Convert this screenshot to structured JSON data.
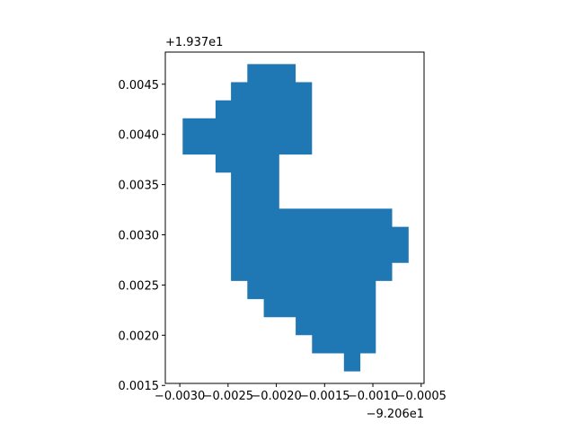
{
  "chart_data": {
    "type": "area",
    "title": "",
    "xlabel": "",
    "ylabel": "",
    "x_offset_label": "−9.206e1",
    "y_offset_label": "+1.937e1",
    "xlim": [
      -0.00315,
      -0.00047
    ],
    "ylim": [
      0.00152,
      0.00482
    ],
    "x_ticks": [
      {
        "value": -0.003,
        "label": "−0.0030"
      },
      {
        "value": -0.0025,
        "label": "−0.0025"
      },
      {
        "value": -0.002,
        "label": "−0.0020"
      },
      {
        "value": -0.0015,
        "label": "−0.0015"
      },
      {
        "value": -0.001,
        "label": "−0.0010"
      },
      {
        "value": -0.0005,
        "label": "−0.0005"
      }
    ],
    "y_ticks": [
      {
        "value": 0.0015,
        "label": "0.0015"
      },
      {
        "value": 0.002,
        "label": "0.0020"
      },
      {
        "value": 0.0025,
        "label": "0.0025"
      },
      {
        "value": 0.003,
        "label": "0.0030"
      },
      {
        "value": 0.0035,
        "label": "0.0035"
      },
      {
        "value": 0.004,
        "label": "0.0040"
      },
      {
        "value": 0.0045,
        "label": "0.0045"
      }
    ],
    "grid": false,
    "fill_color": "#1f77b4",
    "polygon": [
      [
        -0.0023,
        0.0047
      ],
      [
        -0.0018,
        0.0047
      ],
      [
        -0.0018,
        0.00452
      ],
      [
        -0.00163,
        0.00452
      ],
      [
        -0.00163,
        0.0038
      ],
      [
        -0.00197,
        0.0038
      ],
      [
        -0.00197,
        0.00326
      ],
      [
        -0.0008,
        0.00326
      ],
      [
        -0.0008,
        0.00308
      ],
      [
        -0.00063,
        0.00308
      ],
      [
        -0.00063,
        0.00272
      ],
      [
        -0.0008,
        0.00272
      ],
      [
        -0.0008,
        0.00254
      ],
      [
        -0.00097,
        0.00254
      ],
      [
        -0.00097,
        0.00182
      ],
      [
        -0.00113,
        0.00182
      ],
      [
        -0.00113,
        0.00164
      ],
      [
        -0.0013,
        0.00164
      ],
      [
        -0.0013,
        0.00182
      ],
      [
        -0.00163,
        0.00182
      ],
      [
        -0.00163,
        0.002
      ],
      [
        -0.0018,
        0.002
      ],
      [
        -0.0018,
        0.00218
      ],
      [
        -0.00213,
        0.00218
      ],
      [
        -0.00213,
        0.00236
      ],
      [
        -0.0023,
        0.00236
      ],
      [
        -0.0023,
        0.00254
      ],
      [
        -0.00247,
        0.00254
      ],
      [
        -0.00247,
        0.00362
      ],
      [
        -0.00263,
        0.00362
      ],
      [
        -0.00263,
        0.0038
      ],
      [
        -0.00297,
        0.0038
      ],
      [
        -0.00297,
        0.00416
      ],
      [
        -0.00263,
        0.00416
      ],
      [
        -0.00263,
        0.00434
      ],
      [
        -0.00247,
        0.00434
      ],
      [
        -0.00247,
        0.00452
      ],
      [
        -0.0023,
        0.00452
      ]
    ]
  }
}
